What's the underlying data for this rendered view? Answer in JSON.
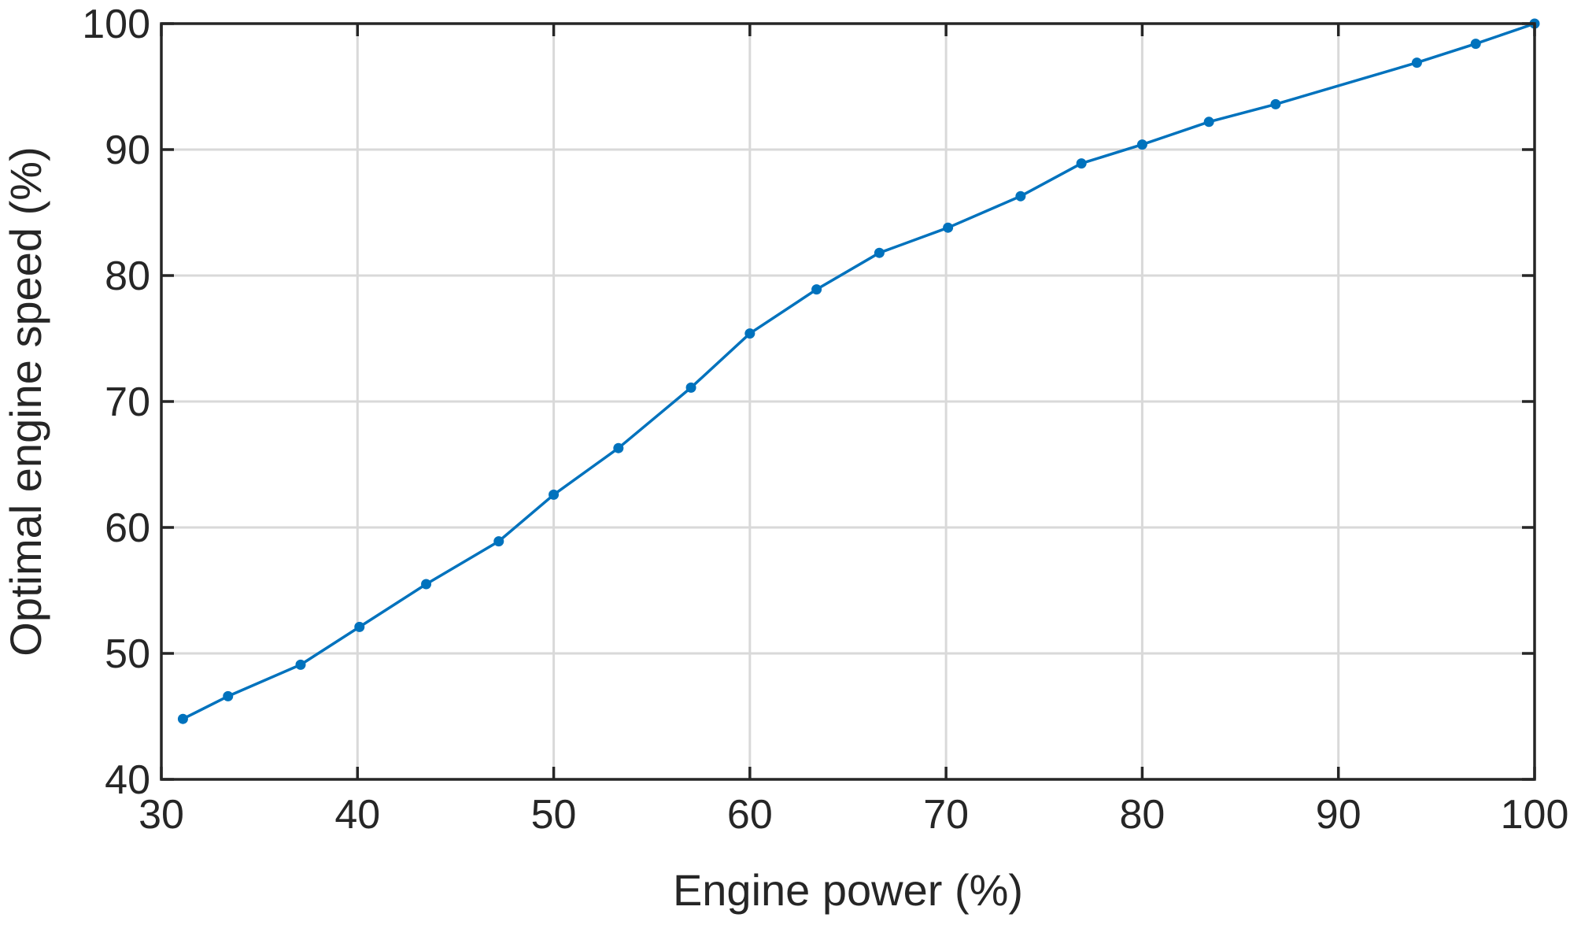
{
  "chart_data": {
    "type": "line",
    "title": "",
    "xlabel": "Engine power (%)",
    "ylabel": "Optimal engine speed (%)",
    "xlim": [
      30,
      100
    ],
    "ylim": [
      40,
      100
    ],
    "xticks": [
      30,
      40,
      50,
      60,
      70,
      80,
      90,
      100
    ],
    "yticks": [
      40,
      50,
      60,
      70,
      80,
      90,
      100
    ],
    "grid": true,
    "legend": "none",
    "series": [
      {
        "color": "#0072BD",
        "marker": "dot",
        "x": [
          31.1,
          33.4,
          37.1,
          40.1,
          43.5,
          47.2,
          50.0,
          53.3,
          57.0,
          60.0,
          63.4,
          66.6,
          70.1,
          73.8,
          76.9,
          80.0,
          83.4,
          86.8,
          94.0,
          97.0,
          100.0
        ],
        "y": [
          44.8,
          46.6,
          49.1,
          52.1,
          55.5,
          58.9,
          62.6,
          66.3,
          71.1,
          75.4,
          78.9,
          81.8,
          83.8,
          86.3,
          88.9,
          90.4,
          92.2,
          93.6,
          96.9,
          98.4,
          100.0
        ]
      }
    ]
  }
}
